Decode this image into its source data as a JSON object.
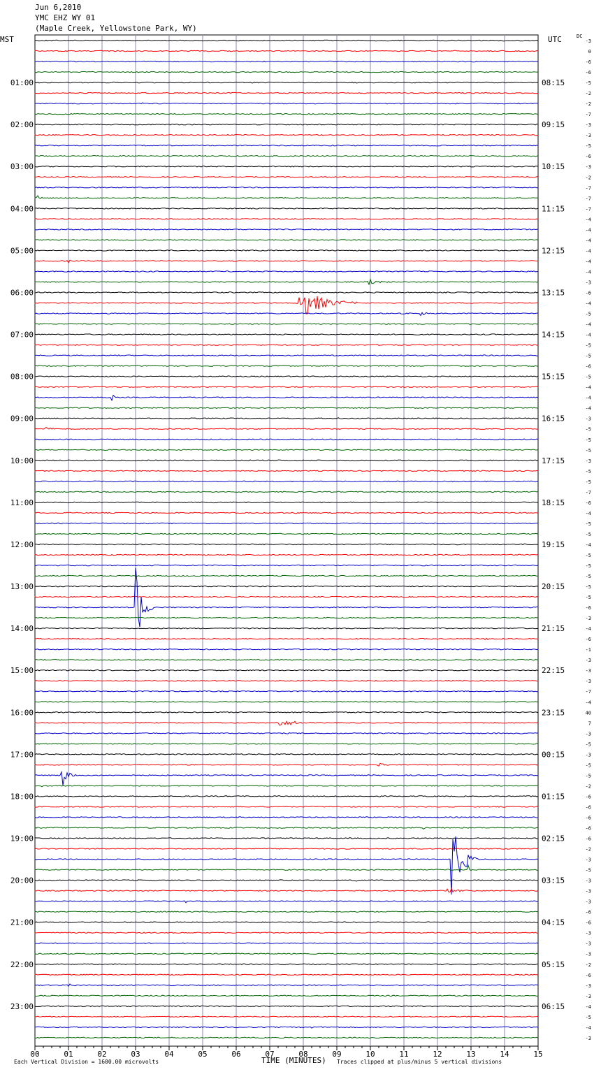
{
  "header": {
    "date": "Jun 6,2010",
    "station": "YMC EHZ WY 01",
    "location": "(Maple Creek, Yellowstone Park, WY)"
  },
  "axes": {
    "left_label": "MST",
    "right_label": "UTC",
    "dc_label": "DC"
  },
  "footer": {
    "scale_note": "Each Vertical Division = 1600.00 microvolts",
    "x_title": "TIME (MINUTES)",
    "clip_note": "Traces clipped at plus/minus 5 vertical divisions"
  },
  "colors": {
    "trace_cycle": [
      "#000000",
      "#ff0000",
      "#0000cc",
      "#006600"
    ],
    "grid": "#8a8ab8"
  },
  "chart_data": {
    "type": "line",
    "title": "YMC EHZ WY 01",
    "xlabel": "TIME (MINUTES)",
    "xlim": [
      0,
      15
    ],
    "x_ticks": [
      "00",
      "01",
      "02",
      "03",
      "04",
      "05",
      "06",
      "07",
      "08",
      "09",
      "10",
      "11",
      "12",
      "13",
      "14",
      "15"
    ],
    "lines_per_hour": 4,
    "line_minutes": 15,
    "mst_labels": [
      "01:00",
      "02:00",
      "03:00",
      "04:00",
      "05:00",
      "06:00",
      "07:00",
      "08:00",
      "09:00",
      "10:00",
      "11:00",
      "12:00",
      "13:00",
      "14:00",
      "15:00",
      "16:00",
      "17:00",
      "18:00",
      "19:00",
      "20:00",
      "21:00",
      "22:00",
      "23:00"
    ],
    "utc_labels": [
      "08:15",
      "09:15",
      "10:15",
      "11:15",
      "12:15",
      "13:15",
      "14:15",
      "15:15",
      "16:15",
      "17:15",
      "18:15",
      "19:15",
      "20:15",
      "21:15",
      "22:15",
      "23:15",
      "00:15",
      "01:15",
      "02:15",
      "03:15",
      "04:15",
      "05:15",
      "06:15"
    ],
    "dc_offsets": [
      "-3",
      "0",
      "-6",
      "-6",
      "-5",
      "-2",
      "-2",
      "-7",
      "-3",
      "-3",
      "-5",
      "-6",
      "-3",
      "-2",
      "-7",
      "-7",
      "-7",
      "-4",
      "-4",
      "-4",
      "-4",
      "-4",
      "-4",
      "-3",
      "-6",
      "-4",
      "-5",
      "-4",
      "-4",
      "-5",
      "-5",
      "-6",
      "-5",
      "-4",
      "-4",
      "-4",
      "-3",
      "-5",
      "-5",
      "-5",
      "-3",
      "-5",
      "-5",
      "-7",
      "-6",
      "-4",
      "-5",
      "-5",
      "-4",
      "-5",
      "-5",
      "-5",
      "-5",
      "-5",
      "-6",
      "-3",
      "-4",
      "-6",
      "-1",
      "-3",
      "-3",
      "-3",
      "-7",
      "-4",
      "40",
      "7",
      "-3",
      "-5",
      "-3",
      "-5",
      "-5",
      "-2",
      "-6",
      "-6",
      "-6",
      "-6",
      "-6",
      "-2",
      "-3",
      "-5",
      "-3",
      "-3",
      "-3",
      "-6",
      "-6",
      "-3",
      "-3",
      "-3",
      "-2",
      "-6",
      "-3",
      "-3",
      "-4",
      "-5",
      "-4",
      "-3"
    ],
    "events": [
      {
        "line": 0,
        "minute": 10.1,
        "amp": 3,
        "dur": 0.1
      },
      {
        "line": 1,
        "minute": 1.0,
        "amp": 3,
        "dur": 0.1
      },
      {
        "line": 6,
        "minute": 3.2,
        "amp": 3,
        "dur": 0.1
      },
      {
        "line": 15,
        "minute": 0.1,
        "amp": 4,
        "dur": 0.2
      },
      {
        "line": 21,
        "minute": 1.0,
        "amp": 3,
        "dur": 0.1
      },
      {
        "line": 23,
        "minute": 9.9,
        "amp": 6,
        "dur": 0.6
      },
      {
        "line": 25,
        "minute": 7.85,
        "amp": 26,
        "dur": 1.8
      },
      {
        "line": 26,
        "minute": 11.5,
        "amp": 4,
        "dur": 0.3
      },
      {
        "line": 29,
        "minute": 10.5,
        "amp": 3,
        "dur": 0.1
      },
      {
        "line": 34,
        "minute": 2.3,
        "amp": 5,
        "dur": 0.2
      },
      {
        "line": 36,
        "minute": 8.9,
        "amp": 3,
        "dur": 0.3
      },
      {
        "line": 37,
        "minute": 0.3,
        "amp": 4,
        "dur": 0.6
      },
      {
        "line": 45,
        "minute": 7.7,
        "amp": 3,
        "dur": 0.2
      },
      {
        "line": 54,
        "minute": 3.0,
        "amp": 62,
        "dur": 0.5
      },
      {
        "line": 57,
        "minute": 13.4,
        "amp": 5,
        "dur": 0.2
      },
      {
        "line": 65,
        "minute": 7.3,
        "amp": 5,
        "dur": 1.2
      },
      {
        "line": 69,
        "minute": 10.2,
        "amp": 4,
        "dur": 0.4
      },
      {
        "line": 70,
        "minute": 0.8,
        "amp": 22,
        "dur": 0.5
      },
      {
        "line": 71,
        "minute": 0.2,
        "amp": 5,
        "dur": 0.1
      },
      {
        "line": 75,
        "minute": 11.6,
        "amp": 3,
        "dur": 0.1
      },
      {
        "line": 78,
        "minute": 12.4,
        "amp": 60,
        "dur": 0.8
      },
      {
        "line": 79,
        "minute": 12.9,
        "amp": 8,
        "dur": 0.2
      },
      {
        "line": 80,
        "minute": 9.6,
        "amp": 6,
        "dur": 0.2
      },
      {
        "line": 81,
        "minute": 12.3,
        "amp": 4,
        "dur": 1.0
      },
      {
        "line": 82,
        "minute": 4.5,
        "amp": 2,
        "dur": 0.1
      },
      {
        "line": 90,
        "minute": 1.0,
        "amp": 2,
        "dur": 0.3
      },
      {
        "line": 94,
        "minute": 8.2,
        "amp": 3,
        "dur": 0.2
      }
    ]
  }
}
